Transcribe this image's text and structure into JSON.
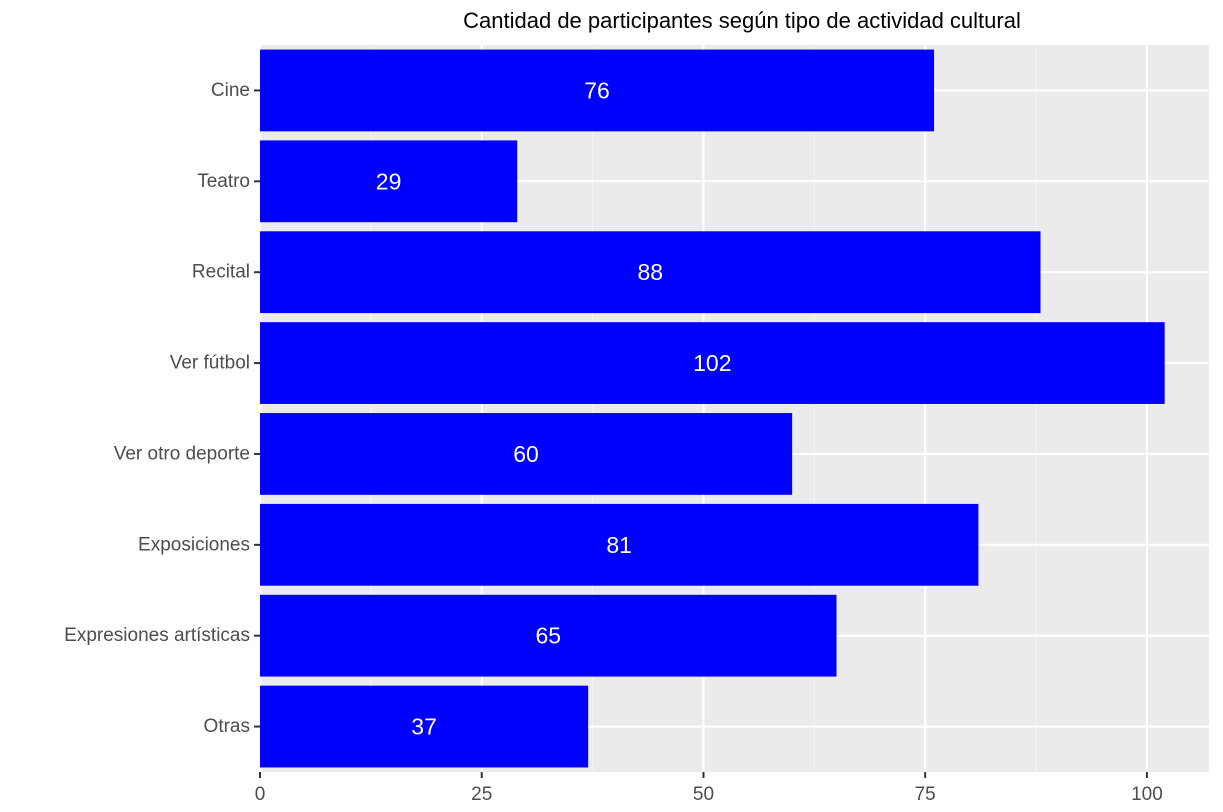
{
  "chart_data": {
    "type": "bar",
    "orientation": "horizontal",
    "title": "Cantidad de participantes según tipo de actividad cultural",
    "xlabel": "",
    "ylabel": "",
    "categories": [
      "Cine",
      "Teatro",
      "Recital",
      "Ver fútbol",
      "Ver otro deporte",
      "Exposiciones",
      "Expresiones artísticas",
      "Otras"
    ],
    "values": [
      76,
      29,
      88,
      102,
      60,
      81,
      65,
      37
    ],
    "data_labels": [
      "76",
      "29",
      "88",
      "102",
      "60",
      "81",
      "65",
      "37"
    ],
    "xlim": [
      0,
      107
    ],
    "xticks": [
      0,
      25,
      50,
      75,
      100
    ],
    "xtick_labels": [
      "0",
      "25",
      "50",
      "75",
      "100"
    ],
    "grid": true,
    "legend": "none",
    "colors": {
      "bar": "#0000ff",
      "panel_background": "#ebebeb",
      "grid_major": "#ffffff",
      "grid_minor": "#f5f5f5",
      "label_text": "#ffffff",
      "tick_text": "#4d4d4d"
    }
  }
}
